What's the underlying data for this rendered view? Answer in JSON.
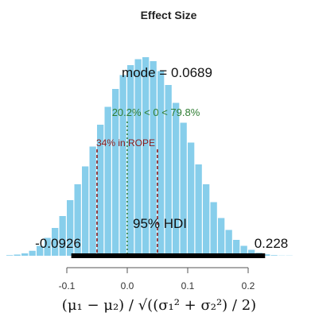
{
  "chart_data": {
    "type": "histogram",
    "title": "Effect Size",
    "xlabel": "(μ₁ − μ₂) / √((σ₁² + σ₂²) / 2)",
    "xticks": [
      -0.1,
      0.0,
      0.1,
      0.2
    ],
    "xtick_labels": [
      "-0.1",
      "0.0",
      "0.1",
      "0.2"
    ],
    "xlim": [
      -0.2,
      0.32
    ],
    "bin_width": 0.0125,
    "bins_start": -0.2,
    "heights": [
      0.003,
      0.006,
      0.012,
      0.025,
      0.05,
      0.09,
      0.14,
      0.2,
      0.28,
      0.36,
      0.45,
      0.55,
      0.66,
      0.75,
      0.84,
      0.91,
      0.96,
      0.99,
      1.0,
      0.98,
      0.93,
      0.86,
      0.77,
      0.67,
      0.57,
      0.46,
      0.36,
      0.27,
      0.19,
      0.13,
      0.08,
      0.05,
      0.03,
      0.015,
      0.007,
      0.003,
      0.001,
      0.001,
      0.0,
      0.0,
      0.0,
      0.0
    ],
    "bar_color": "#87CEEB",
    "mode_label": "mode = 0.0689",
    "comp_value": 0,
    "comp_label": "20.2% < 0 < 79.8%",
    "comp_color": "#2e7d32",
    "rope": [
      -0.05,
      0.05
    ],
    "rope_label": "34% in ROPE",
    "rope_color": "#8b1a1a",
    "hdi": [
      -0.0926,
      0.228
    ],
    "hdi_label": "95% HDI",
    "hdi_low_label": "-0.0926",
    "hdi_high_label": "0.228"
  }
}
